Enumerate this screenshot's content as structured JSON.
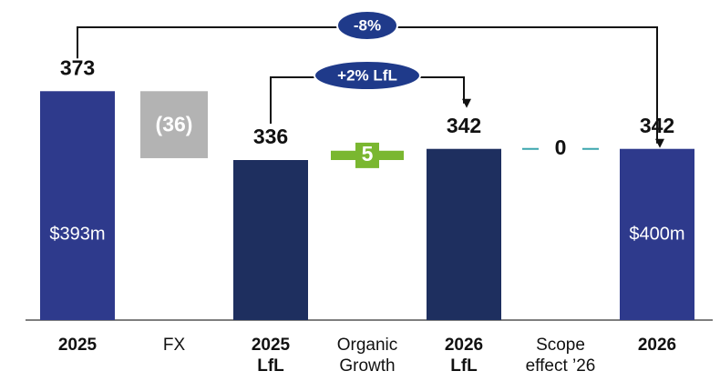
{
  "chart_data": {
    "type": "waterfall",
    "categories": [
      "2025",
      "FX",
      "2025\nLfL",
      "Organic\nGrowth",
      "2026\nLfL",
      "Scope\neffect ’26",
      "2026"
    ],
    "kinds": [
      "total",
      "delta",
      "total",
      "delta",
      "total",
      "delta",
      "total"
    ],
    "values": [
      373,
      -36,
      336,
      5,
      342,
      0,
      342
    ],
    "value_labels": [
      "373",
      "(36)",
      "336",
      "5",
      "342",
      "0",
      "342"
    ],
    "colors": [
      "#2e3a8c",
      "#b3b3b3",
      "#1e2f5f",
      "#7ab730",
      "#1e2f5f",
      "#3aa5ad",
      "#2e3a8c"
    ],
    "bar_notes": [
      {
        "index": 0,
        "text": "$393m"
      },
      {
        "index": 6,
        "text": "$400m"
      }
    ],
    "annotations": [
      {
        "text": "-8%",
        "from": 0,
        "to": 6
      },
      {
        "text": "+2% LfL",
        "from": 2,
        "to": 4
      }
    ],
    "ylim": [
      250,
      422
    ]
  }
}
